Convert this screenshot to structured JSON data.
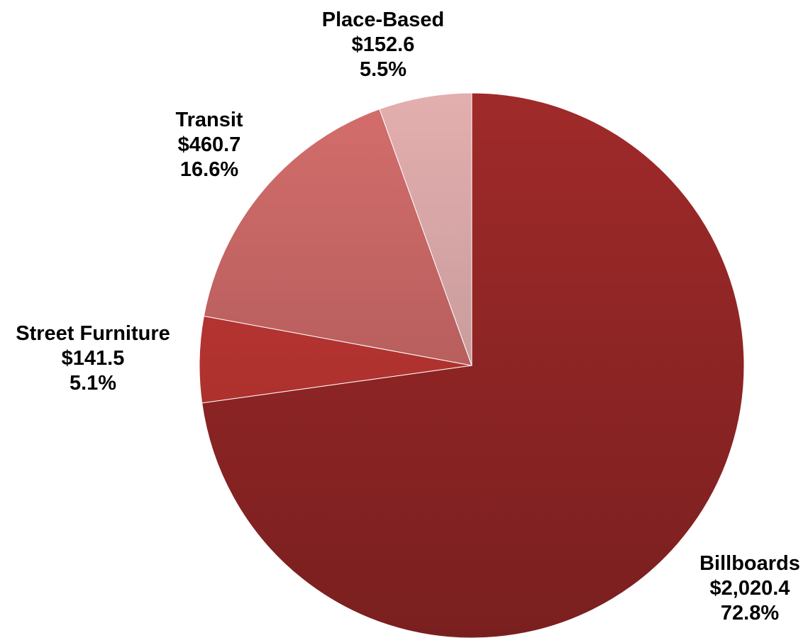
{
  "chart_data": {
    "type": "pie",
    "title": "",
    "slices": [
      {
        "label": "Billboards",
        "value_text": "$2,020.4",
        "percent_text": "72.8%",
        "value": 2020.4,
        "percent": 72.8,
        "color_top": "#a02a2a",
        "color_bottom": "#7a1f1f"
      },
      {
        "label": "Street Furniture",
        "value_text": "$141.5",
        "percent_text": "5.1%",
        "value": 141.5,
        "percent": 5.1,
        "color_top": "#c43a36",
        "color_bottom": "#9c2a28"
      },
      {
        "label": "Transit",
        "value_text": "$460.7",
        "percent_text": "16.6%",
        "value": 460.7,
        "percent": 16.6,
        "color_top": "#d46e6c",
        "color_bottom": "#9c4f4f"
      },
      {
        "label": "Place-Based",
        "value_text": "$152.6",
        "percent_text": "5.5%",
        "value": 152.6,
        "percent": 5.5,
        "color_top": "#e3aeae",
        "color_bottom": "#b08a8a"
      }
    ],
    "start_angle_deg": 0,
    "direction": "clockwise",
    "legend": "none"
  }
}
